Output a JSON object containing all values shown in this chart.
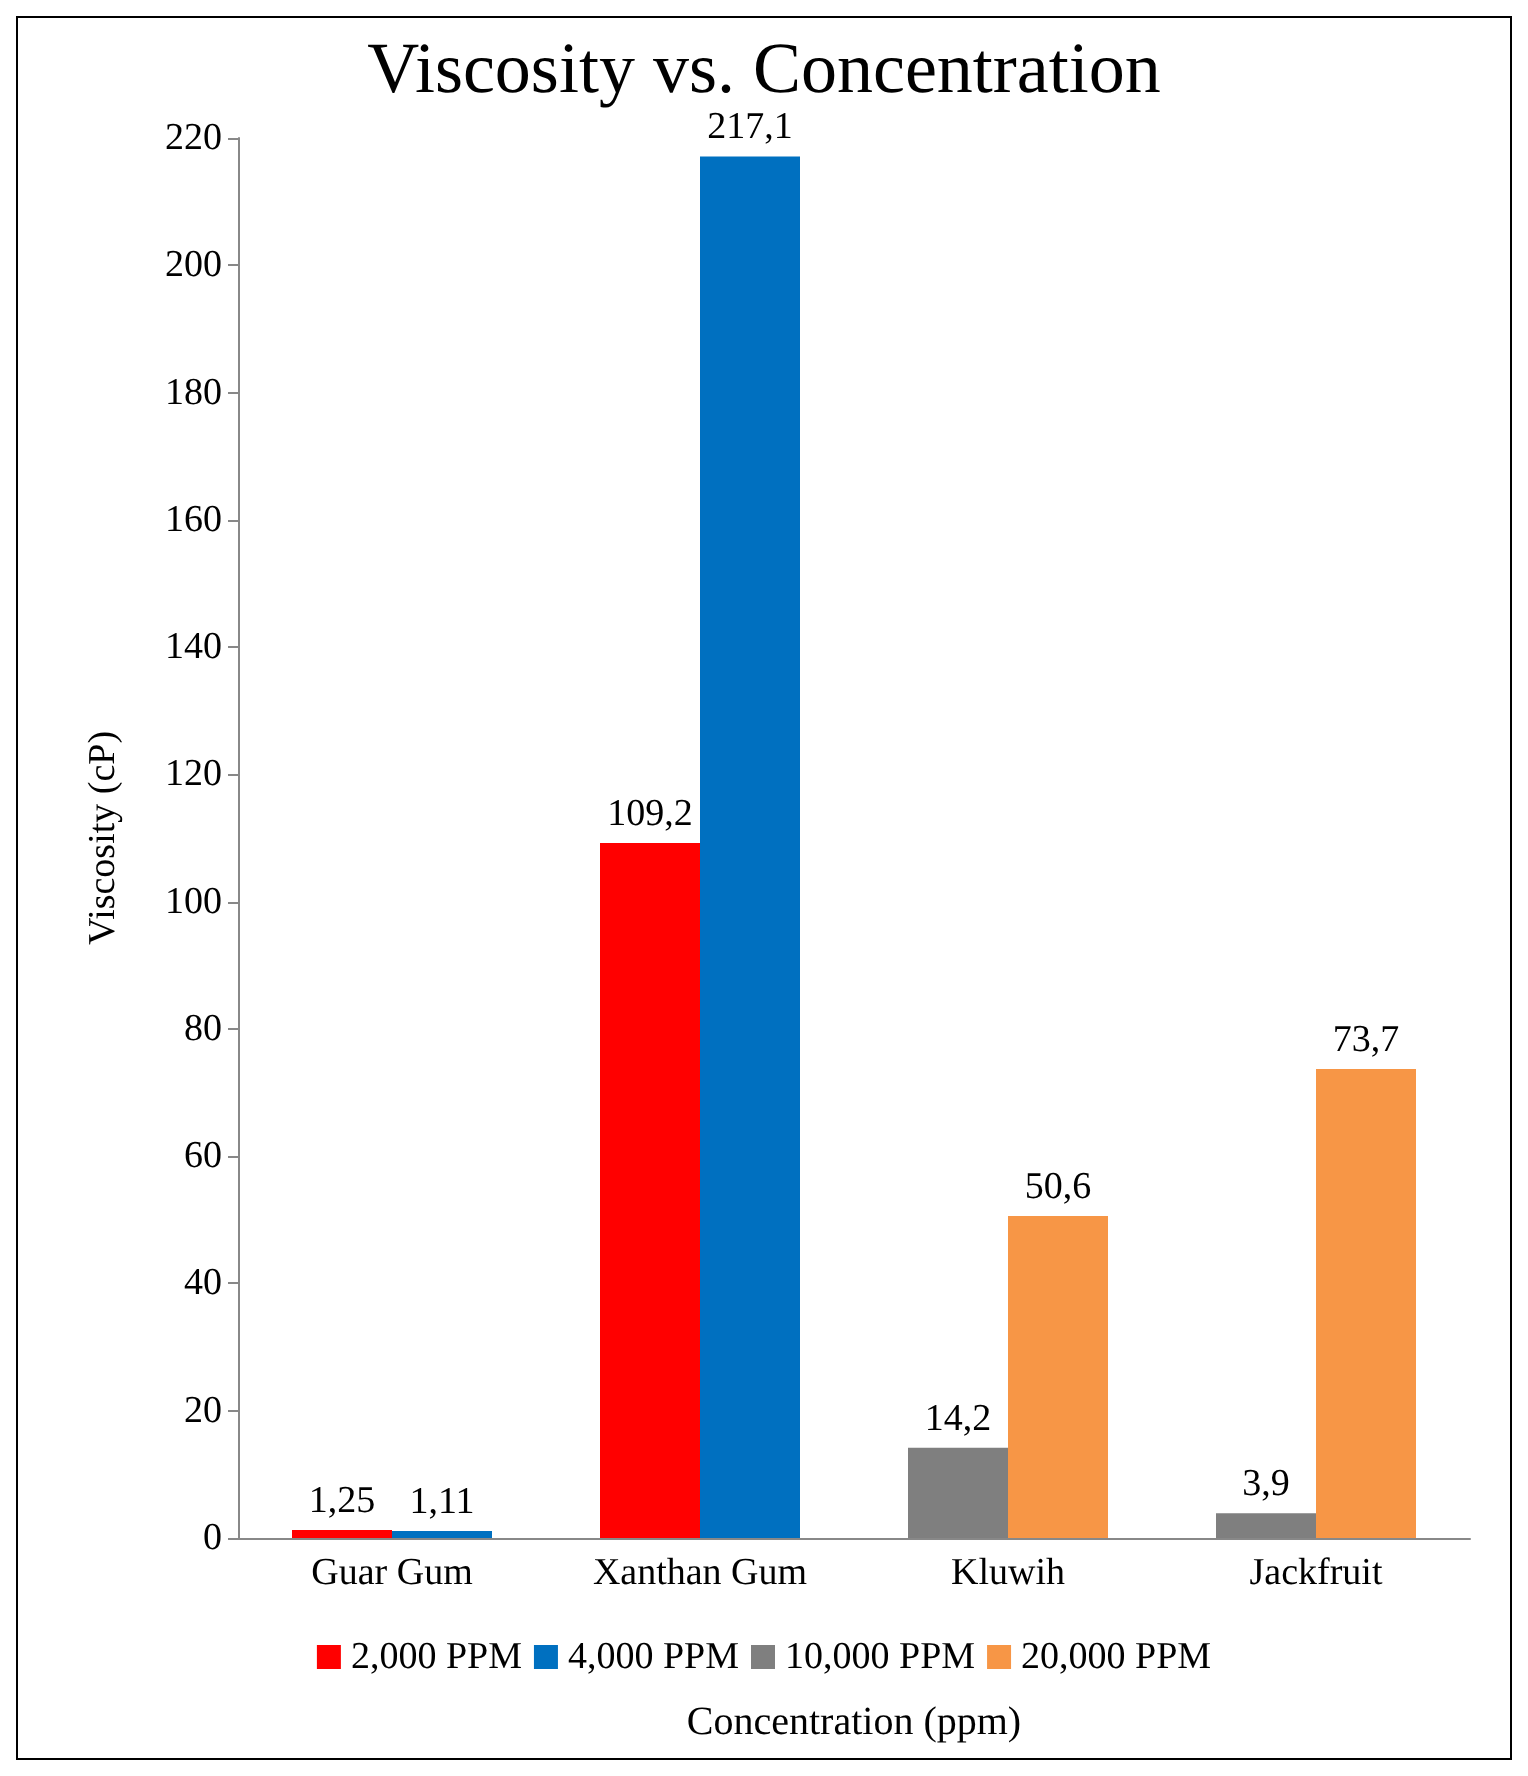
{
  "chart_data": {
    "type": "bar",
    "title": "Viscosity vs. Concentration",
    "xlabel": "Concentration (ppm)",
    "ylabel": "Viscosity (cP)",
    "categories": [
      "Guar Gum",
      "Xanthan Gum",
      "Kluwih",
      "Jackfruit"
    ],
    "series": [
      {
        "name": "2,000 PPM",
        "color": "#ff0000",
        "values": [
          1.25,
          109.2,
          null,
          null
        ],
        "value_labels": [
          "1,25",
          "109,2",
          null,
          null
        ]
      },
      {
        "name": "4,000 PPM",
        "color": "#0070c0",
        "values": [
          1.11,
          217.1,
          null,
          null
        ],
        "value_labels": [
          "1,11",
          "217,1",
          null,
          null
        ]
      },
      {
        "name": "10,000 PPM",
        "color": "#7f7f7f",
        "values": [
          null,
          null,
          14.2,
          3.9
        ],
        "value_labels": [
          null,
          null,
          "14,2",
          "3,9"
        ]
      },
      {
        "name": "20,000 PPM",
        "color": "#f79646",
        "values": [
          null,
          null,
          50.6,
          73.7
        ],
        "value_labels": [
          null,
          null,
          "50,6",
          "73,7"
        ]
      }
    ],
    "ylim": [
      0,
      220
    ],
    "yticks": [
      0,
      20,
      40,
      60,
      80,
      100,
      120,
      140,
      160,
      180,
      200,
      220
    ],
    "grid": false,
    "legend": "bottom"
  }
}
